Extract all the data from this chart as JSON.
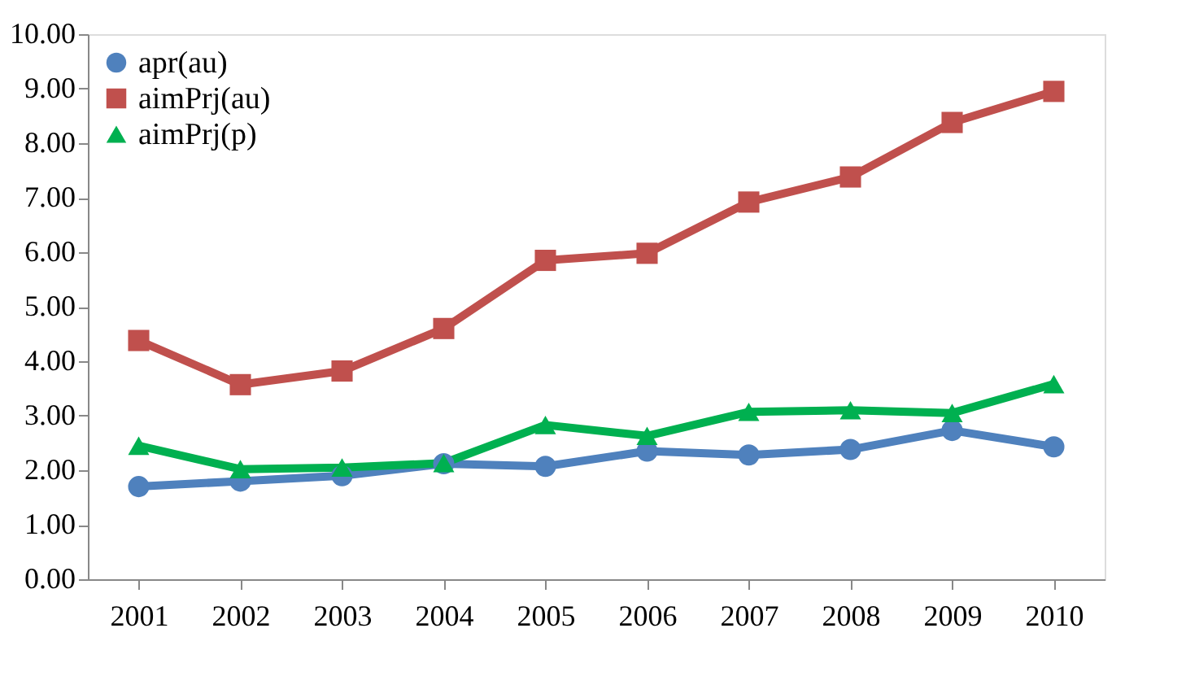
{
  "chart_data": {
    "type": "line",
    "categories": [
      "2001",
      "2002",
      "2003",
      "2004",
      "2005",
      "2006",
      "2007",
      "2008",
      "2009",
      "2010"
    ],
    "series": [
      {
        "name": "apr(au)",
        "color": "#4f81bd",
        "marker": "circle",
        "values": [
          1.7,
          1.8,
          1.9,
          2.12,
          2.07,
          2.35,
          2.28,
          2.38,
          2.73,
          2.43
        ]
      },
      {
        "name": "aimPrj(au)",
        "color": "#c0504d",
        "marker": "square",
        "values": [
          4.38,
          3.57,
          3.82,
          4.6,
          5.85,
          5.98,
          6.92,
          7.38,
          8.38,
          8.95
        ]
      },
      {
        "name": "aimPrj(p)",
        "color": "#00b050",
        "marker": "triangle",
        "values": [
          2.45,
          2.02,
          2.05,
          2.13,
          2.83,
          2.63,
          3.07,
          3.1,
          3.05,
          3.58
        ]
      }
    ],
    "ylim": [
      0,
      10
    ],
    "yticks": [
      {
        "value": 0,
        "label": "0.00"
      },
      {
        "value": 1,
        "label": "1.00"
      },
      {
        "value": 2,
        "label": "2.00"
      },
      {
        "value": 3,
        "label": "3.00"
      },
      {
        "value": 4,
        "label": "4.00"
      },
      {
        "value": 5,
        "label": "5.00"
      },
      {
        "value": 6,
        "label": "6.00"
      },
      {
        "value": 7,
        "label": "7.00"
      },
      {
        "value": 8,
        "label": "8.00"
      },
      {
        "value": 9,
        "label": "9.00"
      },
      {
        "value": 10,
        "label": "10.00"
      }
    ],
    "grid": false,
    "legend": "top left",
    "line_style": "solid"
  }
}
